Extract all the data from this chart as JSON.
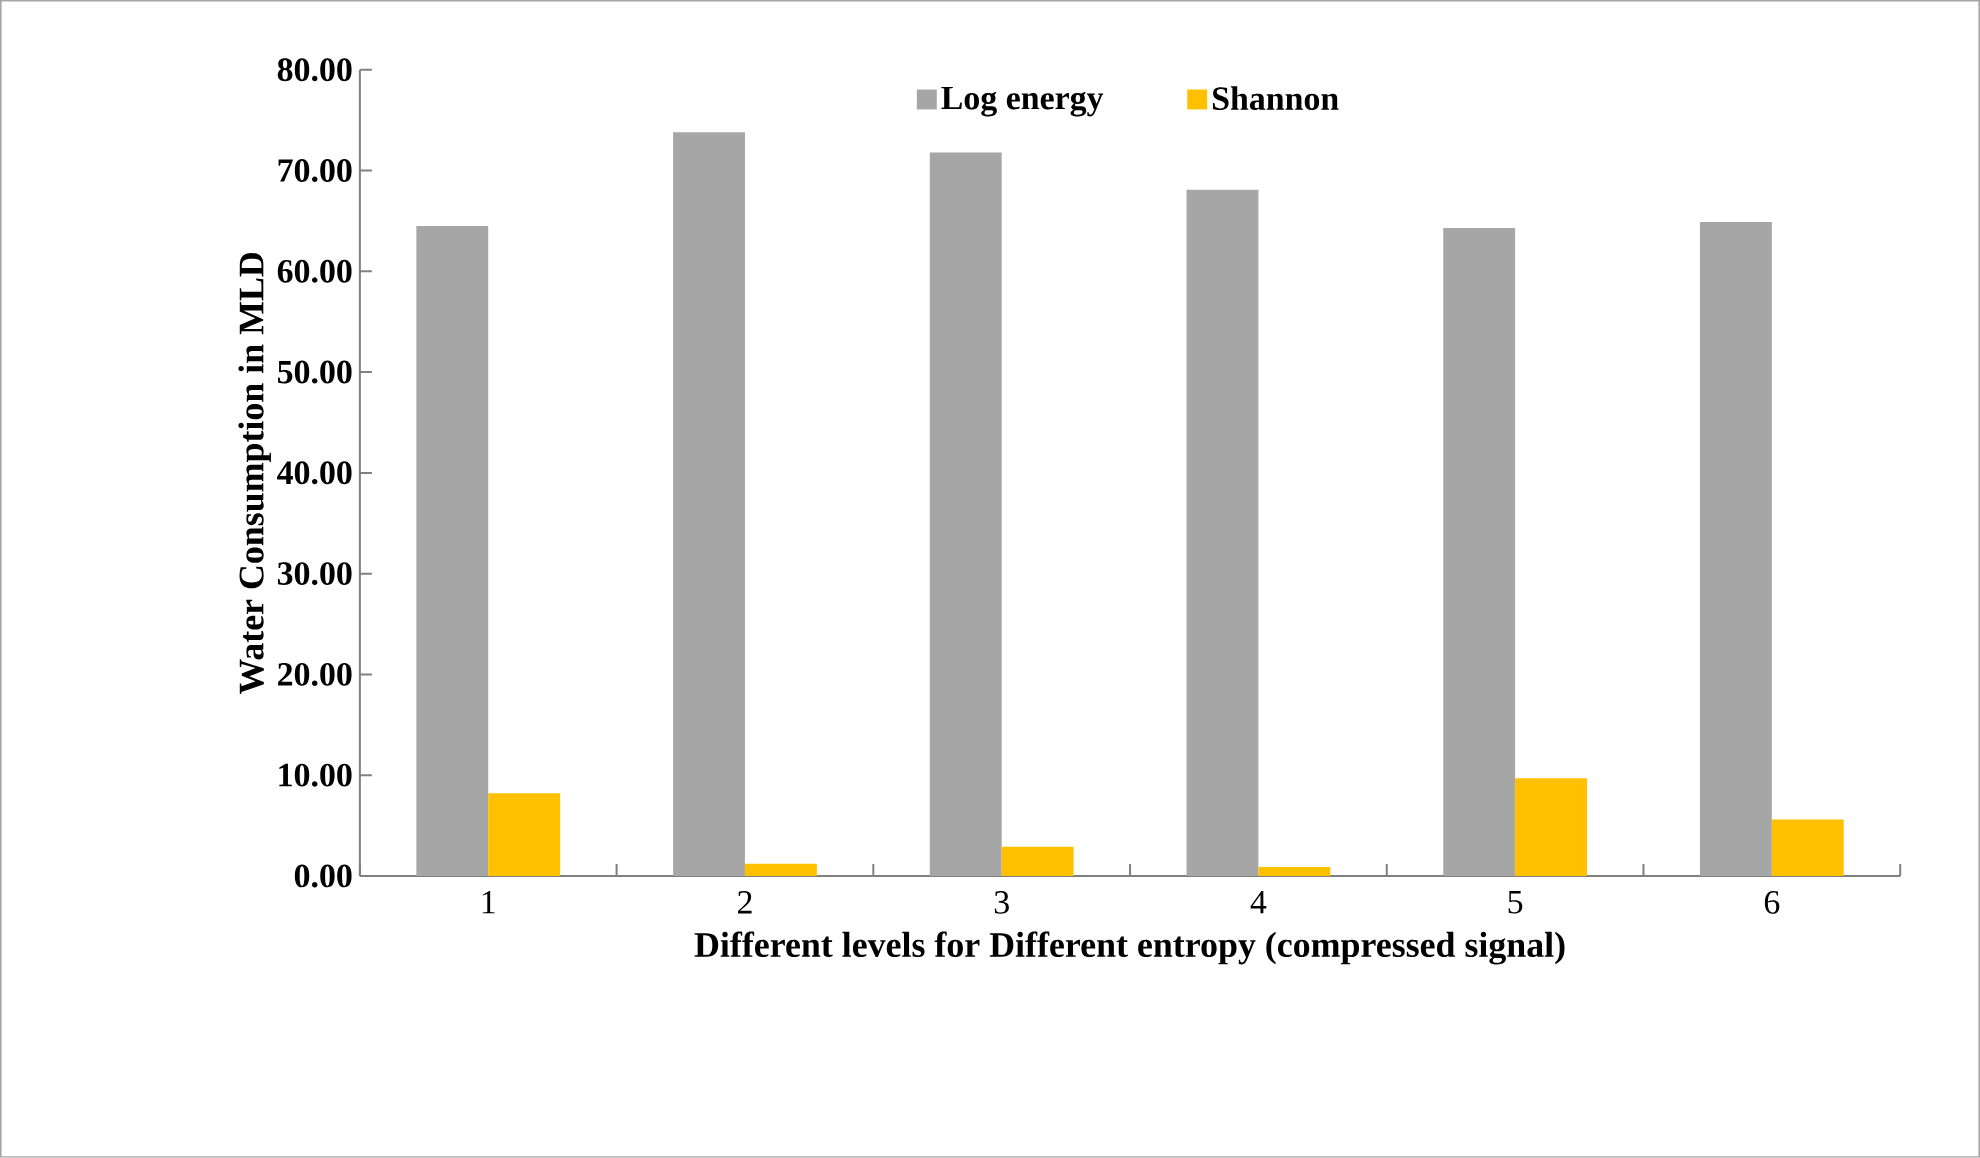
{
  "chart_data": {
    "type": "bar",
    "xlabel": "Different levels for Different entropy (compressed signal)",
    "ylabel": "Water Consumption in MLD",
    "categories": [
      "1",
      "2",
      "3",
      "4",
      "5",
      "6"
    ],
    "series": [
      {
        "name": "Log energy",
        "color": "#a6a6a6",
        "values": [
          64.5,
          73.8,
          71.8,
          68.1,
          64.3,
          64.9
        ]
      },
      {
        "name": "Shannon",
        "color": "#ffc000",
        "values": [
          8.2,
          1.2,
          2.9,
          0.9,
          9.7,
          5.6
        ]
      }
    ],
    "ylim": [
      0,
      80
    ],
    "yticks": [
      {
        "value": 0,
        "label": "0.00"
      },
      {
        "value": 10,
        "label": "10.00"
      },
      {
        "value": 20,
        "label": "20.00"
      },
      {
        "value": 30,
        "label": "30.00"
      },
      {
        "value": 40,
        "label": "40.00"
      },
      {
        "value": 50,
        "label": "50.00"
      },
      {
        "value": 60,
        "label": "60.00"
      },
      {
        "value": 70,
        "label": "70.00"
      },
      {
        "value": 80,
        "label": "80.00"
      }
    ],
    "grid": false,
    "legend": "top"
  }
}
